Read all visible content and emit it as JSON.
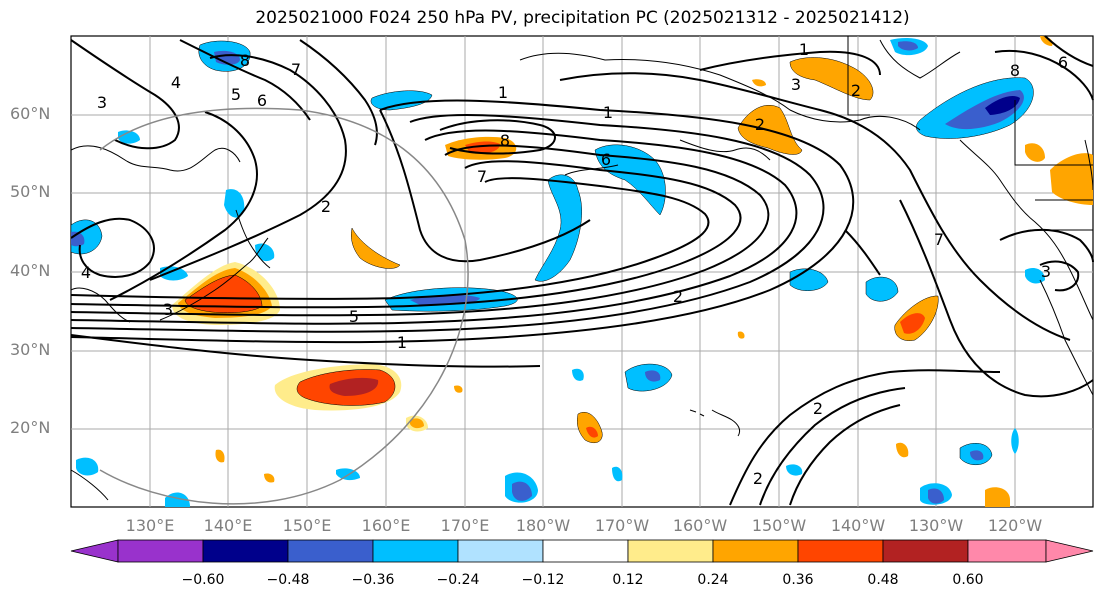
{
  "title": "2025021000 F024 250 hPa PV, precipitation PC (2025021312 - 2025021412)",
  "map": {
    "lat_labels": [
      "60°N",
      "50°N",
      "40°N",
      "30°N",
      "20°N"
    ],
    "lon_labels": [
      "130°E",
      "140°E",
      "150°E",
      "160°E",
      "170°E",
      "180°W",
      "170°W",
      "160°W",
      "150°W",
      "140°W",
      "130°W",
      "120°W"
    ],
    "contour_labels": [
      "8",
      "7",
      "6",
      "5",
      "4",
      "3",
      "1",
      "2",
      "1",
      "8",
      "7",
      "6",
      "1",
      "2",
      "3",
      "2",
      "8",
      "6",
      "3",
      "5",
      "1",
      "2",
      "2",
      "2",
      "4",
      "7",
      "3"
    ]
  },
  "colorbar": {
    "ticks": [
      "−0.60",
      "−0.48",
      "−0.36",
      "−0.24",
      "−0.12",
      "0.12",
      "0.24",
      "0.36",
      "0.48",
      "0.60"
    ],
    "colors": [
      "#9932cc",
      "#00008b",
      "#3a5fcd",
      "#00bfff",
      "#b0e2ff",
      "#ffffff",
      "#ffec8b",
      "#ffa500",
      "#ff4500",
      "#b22222",
      "#ff88aa"
    ]
  }
}
